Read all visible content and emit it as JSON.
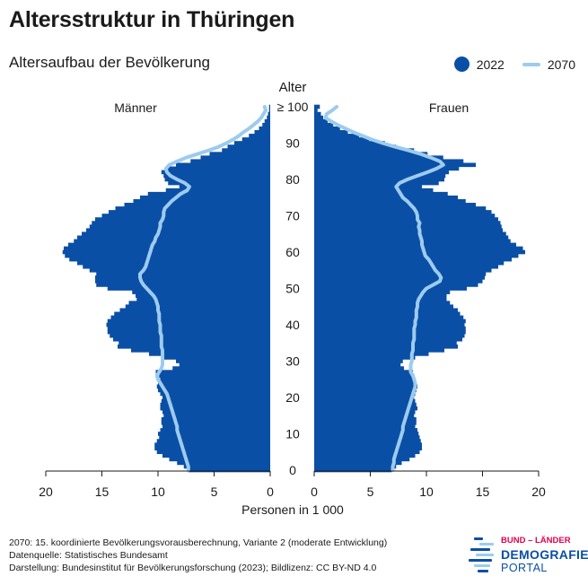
{
  "title": "Altersstruktur in Thüringen",
  "subtitle": "Altersaufbau der Bevölkerung",
  "legend": {
    "series_2022": "2022",
    "series_2070": "2070"
  },
  "colors": {
    "bars_2022": "#0a4fa6",
    "line_2070": "#9dcbee"
  },
  "footer": {
    "line1": "2070: 15. koordinierte Bevölkerungsvorausberechnung, Variante 2 (moderate Entwicklung)",
    "line2": "Datenquelle: Statistisches Bundesamt",
    "line3": "Darstellung: Bundesinstitut für Bevölkerungsforschung (2023); Bildlizenz: CC BY-ND 4.0"
  },
  "logo": {
    "top": "BUND – LÄNDER",
    "middle": "DEMOGRAFIE",
    "bottom": "PORTAL"
  },
  "chart_data": {
    "type": "population_pyramid",
    "age_label": "Alter",
    "left_label": "Männer",
    "right_label": "Frauen",
    "xlabel": "Personen in 1 000",
    "age_ticks": [
      "0",
      "10",
      "20",
      "30",
      "40",
      "50",
      "60",
      "70",
      "80",
      "90",
      "≥ 100"
    ],
    "x_ticks": [
      "20",
      "15",
      "10",
      "5",
      "0"
    ],
    "xlim": [
      0,
      20
    ],
    "ylim": [
      0,
      100
    ],
    "ages": [
      0,
      1,
      2,
      3,
      4,
      5,
      6,
      7,
      8,
      9,
      10,
      11,
      12,
      13,
      14,
      15,
      16,
      17,
      18,
      19,
      20,
      21,
      22,
      23,
      24,
      25,
      26,
      27,
      28,
      29,
      30,
      31,
      32,
      33,
      34,
      35,
      36,
      37,
      38,
      39,
      40,
      41,
      42,
      43,
      44,
      45,
      46,
      47,
      48,
      49,
      50,
      51,
      52,
      53,
      54,
      55,
      56,
      57,
      58,
      59,
      60,
      61,
      62,
      63,
      64,
      65,
      66,
      67,
      68,
      69,
      70,
      71,
      72,
      73,
      74,
      75,
      76,
      77,
      78,
      79,
      80,
      81,
      82,
      83,
      84,
      85,
      86,
      87,
      88,
      89,
      90,
      91,
      92,
      93,
      94,
      95,
      96,
      97,
      98,
      99,
      100
    ],
    "series": [
      {
        "name": "2022",
        "men": [
          7.3,
          7.7,
          8.3,
          9.0,
          9.6,
          10.1,
          10.3,
          10.3,
          10.1,
          9.9,
          10.0,
          9.8,
          9.6,
          9.7,
          9.7,
          9.5,
          9.6,
          9.8,
          9.8,
          9.7,
          9.6,
          9.8,
          10.0,
          10.1,
          10.0,
          9.8,
          9.9,
          10.2,
          8.7,
          8.1,
          8.4,
          9.5,
          10.8,
          12.4,
          13.6,
          13.5,
          14.0,
          14.3,
          14.5,
          14.5,
          14.6,
          14.5,
          14.2,
          13.9,
          13.4,
          12.9,
          12.6,
          11.9,
          12.0,
          12.3,
          14.5,
          15.5,
          15.6,
          15.6,
          15.5,
          16.1,
          16.7,
          17.2,
          17.9,
          18.3,
          18.5,
          18.4,
          18.0,
          17.5,
          17.2,
          16.8,
          16.4,
          16.1,
          15.9,
          15.6,
          15.0,
          14.4,
          13.8,
          13.0,
          12.2,
          11.6,
          10.9,
          9.3,
          8.1,
          9.1,
          9.4,
          9.5,
          9.7,
          9.3,
          8.4,
          7.1,
          6.2,
          5.4,
          4.3,
          3.8,
          3.2,
          2.5,
          1.9,
          1.4,
          1.0,
          0.7,
          0.5,
          0.3,
          0.2,
          0.1,
          0.1
        ]
      },
      {
        "name": "2070",
        "men": [
          7.3,
          7.3,
          7.4,
          7.5,
          7.6,
          7.7,
          7.8,
          7.9,
          8.0,
          8.1,
          8.2,
          8.3,
          8.3,
          8.4,
          8.5,
          8.6,
          8.7,
          8.8,
          8.9,
          9.0,
          9.1,
          9.2,
          9.4,
          9.6,
          9.8,
          10.0,
          10.1,
          9.9,
          9.7,
          9.6,
          9.6,
          9.6,
          9.6,
          9.6,
          9.7,
          9.7,
          9.7,
          9.7,
          9.8,
          9.8,
          9.8,
          9.9,
          9.9,
          9.9,
          10.0,
          10.0,
          10.1,
          10.2,
          10.4,
          10.7,
          11.0,
          11.3,
          11.5,
          11.6,
          11.6,
          11.3,
          11.1,
          11.0,
          10.9,
          10.8,
          10.7,
          10.6,
          10.5,
          10.3,
          10.2,
          10.0,
          9.9,
          9.8,
          9.8,
          9.6,
          9.5,
          9.5,
          9.4,
          9.1,
          8.8,
          8.4,
          8.0,
          7.4,
          7.2,
          7.6,
          8.3,
          8.9,
          9.2,
          9.3,
          9.0,
          8.3,
          7.5,
          6.5,
          5.5,
          4.6,
          3.9,
          3.3,
          2.8,
          2.4,
          1.9,
          1.5,
          1.1,
          0.8,
          0.6,
          0.4,
          0.5
        ]
      },
      {
        "name": "2022",
        "women": [
          6.9,
          7.3,
          7.8,
          8.5,
          9.0,
          9.4,
          9.6,
          9.6,
          9.5,
          9.4,
          9.3,
          9.2,
          9.0,
          9.1,
          9.1,
          8.9,
          9.0,
          9.2,
          9.1,
          9.0,
          8.9,
          9.0,
          9.1,
          9.2,
          9.1,
          8.9,
          8.9,
          8.8,
          8.0,
          7.7,
          7.9,
          9.0,
          10.2,
          11.6,
          12.8,
          12.7,
          13.2,
          13.4,
          13.5,
          13.5,
          13.4,
          13.5,
          13.3,
          13.0,
          12.8,
          12.4,
          12.1,
          11.8,
          11.8,
          12.1,
          13.6,
          14.6,
          15.0,
          15.2,
          15.3,
          15.8,
          16.4,
          16.9,
          17.6,
          18.2,
          18.8,
          18.6,
          18.0,
          17.5,
          17.3,
          17.1,
          16.8,
          16.7,
          16.6,
          16.4,
          16.1,
          15.8,
          15.3,
          14.4,
          13.5,
          12.8,
          11.9,
          10.6,
          9.6,
          11.1,
          11.6,
          11.7,
          12.0,
          12.9,
          14.4,
          13.3,
          11.5,
          10.1,
          8.9,
          7.3,
          6.3,
          4.9,
          4.0,
          3.0,
          2.3,
          1.7,
          1.2,
          0.8,
          0.6,
          0.3,
          0.5
        ]
      },
      {
        "name": "2070",
        "women": [
          7.0,
          7.0,
          7.1,
          7.1,
          7.2,
          7.3,
          7.4,
          7.5,
          7.6,
          7.7,
          7.8,
          7.9,
          7.9,
          8.0,
          8.1,
          8.2,
          8.3,
          8.4,
          8.5,
          8.6,
          8.7,
          8.8,
          8.9,
          9.0,
          9.0,
          8.9,
          8.8,
          8.6,
          8.6,
          8.6,
          8.7,
          8.7,
          8.7,
          8.8,
          8.8,
          8.8,
          8.9,
          8.9,
          8.9,
          8.9,
          9.0,
          9.0,
          9.1,
          9.1,
          9.1,
          9.2,
          9.2,
          9.3,
          9.5,
          9.7,
          10.0,
          10.6,
          11.2,
          11.3,
          11.1,
          10.8,
          10.6,
          10.4,
          10.2,
          9.9,
          9.8,
          9.7,
          9.6,
          9.6,
          9.5,
          9.4,
          9.4,
          9.3,
          9.4,
          9.2,
          9.2,
          9.1,
          8.9,
          8.6,
          8.3,
          7.9,
          7.7,
          7.5,
          7.3,
          7.6,
          8.3,
          9.2,
          10.1,
          10.9,
          11.5,
          11.2,
          10.4,
          9.5,
          8.4,
          7.2,
          6.1,
          5.1,
          4.3,
          3.5,
          2.8,
          2.1,
          1.5,
          1.0,
          1.1,
          1.6,
          2.0
        ]
      }
    ]
  }
}
